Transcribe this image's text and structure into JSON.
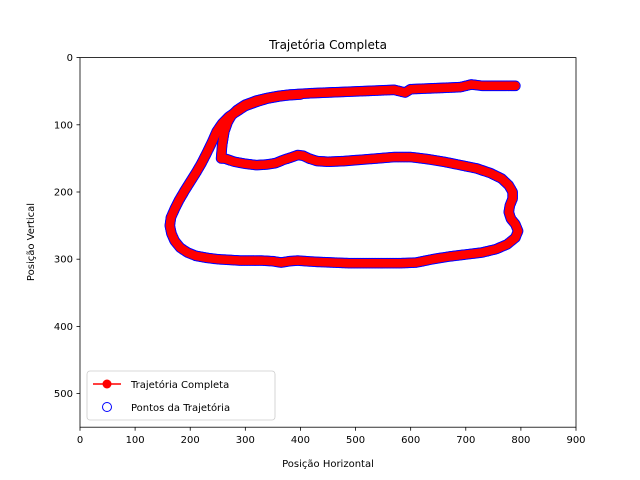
{
  "chart_data": {
    "type": "scatter",
    "title": "Trajetória Completa",
    "xlabel": "Posição Horizontal",
    "ylabel": "Posição Vertical",
    "xlim": [
      0,
      900
    ],
    "ylim": [
      550,
      0
    ],
    "y_inverted": true,
    "xticks": [
      0,
      100,
      200,
      300,
      400,
      500,
      600,
      700,
      800,
      900
    ],
    "yticks": [
      0,
      100,
      200,
      300,
      400,
      500
    ],
    "grid": false,
    "legend_position": "lower-left",
    "series": [
      {
        "name": "Trajetória Completa",
        "kind": "line",
        "color": "#ff0000",
        "marker": "circle",
        "points": [
          [
            790,
            42
          ],
          [
            760,
            42
          ],
          [
            730,
            42
          ],
          [
            710,
            40
          ],
          [
            690,
            44
          ],
          [
            660,
            45
          ],
          [
            630,
            46
          ],
          [
            600,
            47
          ],
          [
            590,
            52
          ],
          [
            570,
            48
          ],
          [
            540,
            49
          ],
          [
            510,
            50
          ],
          [
            480,
            51
          ],
          [
            450,
            52
          ],
          [
            420,
            53
          ],
          [
            400,
            54
          ],
          [
            380,
            55
          ],
          [
            360,
            57
          ],
          [
            340,
            60
          ],
          [
            320,
            64
          ],
          [
            300,
            70
          ],
          [
            285,
            78
          ],
          [
            275,
            86
          ],
          [
            268,
            96
          ],
          [
            262,
            110
          ],
          [
            258,
            130
          ],
          [
            256,
            150
          ],
          [
            262,
            150
          ],
          [
            280,
            155
          ],
          [
            300,
            158
          ],
          [
            320,
            160
          ],
          [
            340,
            159
          ],
          [
            355,
            157
          ],
          [
            370,
            152
          ],
          [
            385,
            148
          ],
          [
            395,
            145
          ],
          [
            405,
            146
          ],
          [
            415,
            150
          ],
          [
            430,
            154
          ],
          [
            450,
            155
          ],
          [
            480,
            154
          ],
          [
            510,
            152
          ],
          [
            540,
            150
          ],
          [
            570,
            148
          ],
          [
            600,
            148
          ],
          [
            630,
            151
          ],
          [
            660,
            155
          ],
          [
            690,
            160
          ],
          [
            720,
            165
          ],
          [
            745,
            172
          ],
          [
            765,
            180
          ],
          [
            778,
            190
          ],
          [
            785,
            200
          ],
          [
            785,
            210
          ],
          [
            780,
            220
          ],
          [
            778,
            230
          ],
          [
            782,
            240
          ],
          [
            790,
            248
          ],
          [
            795,
            258
          ],
          [
            790,
            268
          ],
          [
            775,
            278
          ],
          [
            755,
            285
          ],
          [
            730,
            290
          ],
          [
            700,
            293
          ],
          [
            670,
            296
          ],
          [
            640,
            300
          ],
          [
            610,
            305
          ],
          [
            580,
            306
          ],
          [
            550,
            306
          ],
          [
            520,
            306
          ],
          [
            490,
            306
          ],
          [
            460,
            305
          ],
          [
            430,
            304
          ],
          [
            410,
            303
          ],
          [
            395,
            302
          ],
          [
            380,
            303
          ],
          [
            365,
            305
          ],
          [
            350,
            303
          ],
          [
            330,
            302
          ],
          [
            310,
            302
          ],
          [
            290,
            302
          ],
          [
            270,
            301
          ],
          [
            250,
            300
          ],
          [
            230,
            298
          ],
          [
            210,
            295
          ],
          [
            195,
            290
          ],
          [
            182,
            283
          ],
          [
            172,
            273
          ],
          [
            166,
            262
          ],
          [
            163,
            250
          ],
          [
            165,
            238
          ],
          [
            172,
            225
          ],
          [
            180,
            212
          ],
          [
            190,
            198
          ],
          [
            200,
            185
          ],
          [
            210,
            172
          ],
          [
            220,
            158
          ],
          [
            230,
            142
          ],
          [
            240,
            125
          ],
          [
            248,
            110
          ],
          [
            258,
            98
          ],
          [
            270,
            88
          ],
          [
            285,
            80
          ],
          [
            300,
            72
          ],
          [
            320,
            66
          ],
          [
            340,
            61
          ],
          [
            360,
            58
          ],
          [
            380,
            56
          ],
          [
            400,
            55
          ]
        ]
      },
      {
        "name": "Pontos da Trajetória",
        "kind": "scatter",
        "color": "#0000ff",
        "marker": "circle-open"
      }
    ]
  }
}
